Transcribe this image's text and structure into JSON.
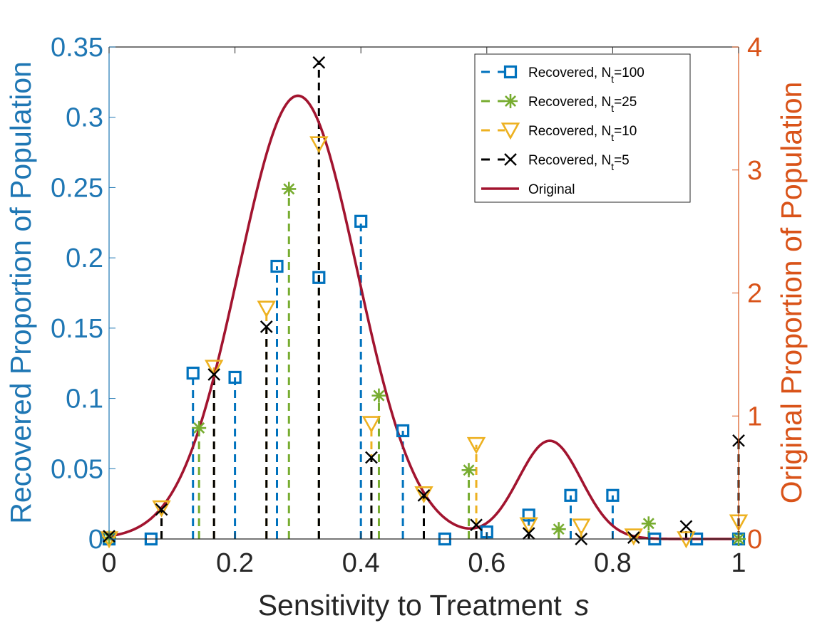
{
  "chart_data": {
    "type": "line",
    "xlabel": "Sensitivity to Treatment",
    "xlabel_italic": "s",
    "ylabel_left": "Recovered Proportion of Population",
    "ylabel_right": "Original Proportion of Population",
    "xlim": [
      0,
      1
    ],
    "ylim_left": [
      0,
      0.35
    ],
    "ylim_right": [
      0,
      4
    ],
    "xticks": [
      "0",
      "0.2",
      "0.4",
      "0.6",
      "0.8",
      "1"
    ],
    "xtick_values": [
      0,
      0.2,
      0.4,
      0.6,
      0.8,
      1
    ],
    "yticks_left": [
      "0",
      "0.05",
      "0.1",
      "0.15",
      "0.2",
      "0.25",
      "0.3",
      "0.35"
    ],
    "ytick_values_left": [
      0,
      0.05,
      0.1,
      0.15,
      0.2,
      0.25,
      0.3,
      0.35
    ],
    "yticks_right": [
      "0",
      "1",
      "2",
      "3",
      "4"
    ],
    "ytick_values_right": [
      0,
      1,
      2,
      3,
      4
    ],
    "colors": {
      "left_axis": "#1f77b4",
      "right_axis": "#d95319",
      "axis": "#262626",
      "n100": "#0072bd",
      "n25": "#77ac30",
      "n10": "#edb120",
      "n5": "#000000",
      "original": "#a2142f"
    },
    "legend_position": "top-right",
    "series": [
      {
        "name": "Recovered, N",
        "sub": "t",
        "suffix": "=100",
        "marker": "square",
        "x": [
          0,
          0.0667,
          0.1333,
          0.2,
          0.2667,
          0.3333,
          0.4,
          0.4667,
          0.5333,
          0.6,
          0.6667,
          0.7333,
          0.8,
          0.8667,
          0.9333,
          1.0
        ],
        "y": [
          0.0,
          0.0,
          0.118,
          0.115,
          0.194,
          0.186,
          0.226,
          0.077,
          0.0,
          0.005,
          0.017,
          0.031,
          0.031,
          0.0,
          0.0,
          0.0
        ]
      },
      {
        "name": "Recovered, N",
        "sub": "t",
        "suffix": "=25",
        "marker": "asterisk",
        "x": [
          0,
          0.1429,
          0.2857,
          0.4286,
          0.5714,
          0.7143,
          0.8571,
          1.0
        ],
        "y": [
          0.001,
          0.079,
          0.249,
          0.102,
          0.049,
          0.007,
          0.011,
          0.0
        ]
      },
      {
        "name": "Recovered, N",
        "sub": "t",
        "suffix": "=10",
        "marker": "triangle-down",
        "x": [
          0,
          0.0833,
          0.1667,
          0.25,
          0.3333,
          0.4167,
          0.5,
          0.5833,
          0.6667,
          0.75,
          0.8333,
          0.9167,
          1.0
        ],
        "y": [
          0.0,
          0.022,
          0.122,
          0.164,
          0.281,
          0.082,
          0.032,
          0.067,
          0.01,
          0.009,
          0.002,
          0.0,
          0.012
        ]
      },
      {
        "name": "Recovered, N",
        "sub": "t",
        "suffix": "=5",
        "marker": "cross",
        "x": [
          0,
          0.0833,
          0.1667,
          0.25,
          0.3333,
          0.4167,
          0.5,
          0.5833,
          0.6667,
          0.75,
          0.8333,
          0.9167,
          1.0
        ],
        "y": [
          0.002,
          0.021,
          0.117,
          0.151,
          0.339,
          0.058,
          0.031,
          0.01,
          0.004,
          0.0,
          0.001,
          0.009,
          0.07
        ]
      }
    ],
    "original": {
      "name": "Original",
      "axis": "right",
      "components": [
        {
          "weight": 0.85,
          "mean": 0.3,
          "sd": 0.0941
        },
        {
          "weight": 0.1,
          "mean": 0.7,
          "sd": 0.05
        }
      ]
    }
  }
}
